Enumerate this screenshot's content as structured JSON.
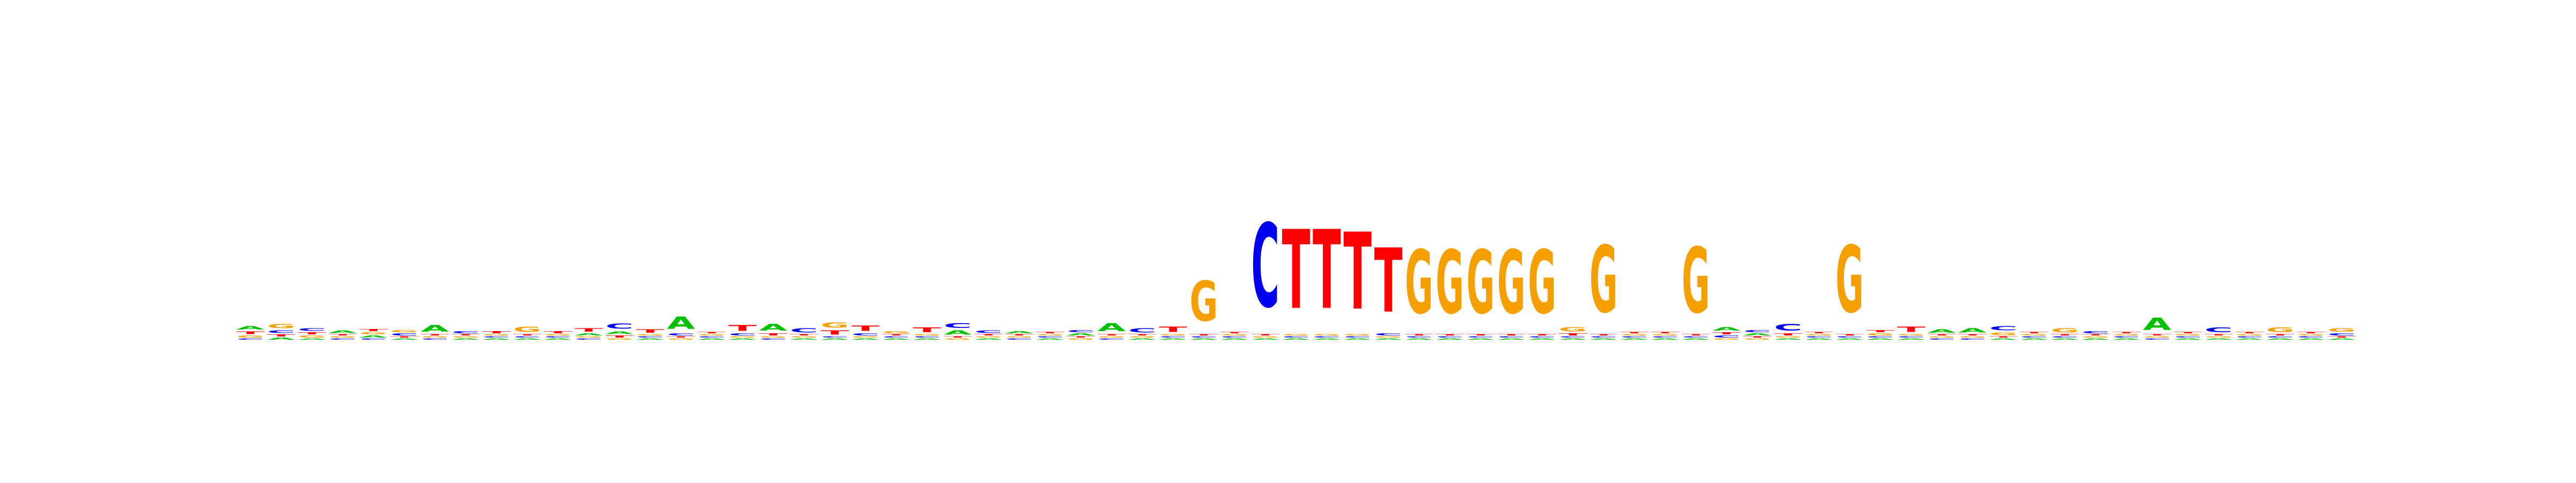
{
  "chart_data": {
    "type": "sequence-logo",
    "alphabet": [
      "A",
      "C",
      "G",
      "T"
    ],
    "colors": {
      "A": "#00c000",
      "C": "#0000ee",
      "G": "#f5a000",
      "T": "#ff0000"
    },
    "background_color": "#ffffff",
    "ylim": [
      0,
      2
    ],
    "value_unit": "bits",
    "positions": [
      {
        "A": 0.05,
        "C": 0.02,
        "G": 0.03,
        "T": 0.04
      },
      {
        "A": 0.03,
        "C": 0.04,
        "G": 0.06,
        "T": 0.03
      },
      {
        "A": 0.02,
        "C": 0.04,
        "G": 0.03,
        "T": 0.03
      },
      {
        "A": 0.04,
        "C": 0.02,
        "G": 0.02,
        "T": 0.02
      },
      {
        "A": 0.03,
        "C": 0.02,
        "G": 0.03,
        "T": 0.03
      },
      {
        "A": 0.02,
        "C": 0.03,
        "G": 0.03,
        "T": 0.02
      },
      {
        "A": 0.1,
        "C": 0.02,
        "G": 0.02,
        "T": 0.02
      },
      {
        "A": 0.02,
        "C": 0.03,
        "G": 0.02,
        "T": 0.02
      },
      {
        "A": 0.02,
        "C": 0.02,
        "G": 0.02,
        "T": 0.03
      },
      {
        "A": 0.02,
        "C": 0.02,
        "G": 0.08,
        "T": 0.02
      },
      {
        "A": 0.02,
        "C": 0.02,
        "G": 0.02,
        "T": 0.03
      },
      {
        "A": 0.03,
        "C": 0.02,
        "G": 0.02,
        "T": 0.05
      },
      {
        "A": 0.04,
        "C": 0.08,
        "G": 0.02,
        "T": 0.03
      },
      {
        "A": 0.02,
        "C": 0.02,
        "G": 0.02,
        "T": 0.05
      },
      {
        "A": 0.18,
        "C": 0.03,
        "G": 0.02,
        "T": 0.02
      },
      {
        "A": 0.02,
        "C": 0.02,
        "G": 0.02,
        "T": 0.02
      },
      {
        "A": 0.02,
        "C": 0.03,
        "G": 0.02,
        "T": 0.09
      },
      {
        "A": 0.1,
        "C": 0.02,
        "G": 0.02,
        "T": 0.03
      },
      {
        "A": 0.02,
        "C": 0.06,
        "G": 0.02,
        "T": 0.02
      },
      {
        "A": 0.02,
        "C": 0.02,
        "G": 0.08,
        "T": 0.06
      },
      {
        "A": 0.02,
        "C": 0.03,
        "G": 0.02,
        "T": 0.08
      },
      {
        "A": 0.02,
        "C": 0.02,
        "G": 0.03,
        "T": 0.02
      },
      {
        "A": 0.02,
        "C": 0.02,
        "G": 0.02,
        "T": 0.07
      },
      {
        "A": 0.06,
        "C": 0.07,
        "G": 0.02,
        "T": 0.02
      },
      {
        "A": 0.02,
        "C": 0.04,
        "G": 0.02,
        "T": 0.02
      },
      {
        "A": 0.03,
        "C": 0.02,
        "G": 0.02,
        "T": 0.02
      },
      {
        "A": 0.02,
        "C": 0.02,
        "G": 0.02,
        "T": 0.02
      },
      {
        "A": 0.03,
        "C": 0.03,
        "G": 0.02,
        "T": 0.02
      },
      {
        "A": 0.12,
        "C": 0.02,
        "G": 0.02,
        "T": 0.02
      },
      {
        "A": 0.02,
        "C": 0.06,
        "G": 0.02,
        "T": 0.02
      },
      {
        "A": 0.02,
        "C": 0.02,
        "G": 0.02,
        "T": 0.08
      },
      {
        "A": 0.02,
        "C": 0.02,
        "G": 0.6,
        "T": 0.02
      },
      {
        "A": 0.02,
        "C": 0.02,
        "G": 0.02,
        "T": 0.02
      },
      {
        "A": 0.02,
        "C": 1.25,
        "G": 0.02,
        "T": 0.02
      },
      {
        "A": 0.02,
        "C": 0.02,
        "G": 0.02,
        "T": 1.18
      },
      {
        "A": 0.02,
        "C": 0.02,
        "G": 0.02,
        "T": 1.18
      },
      {
        "A": 0.02,
        "C": 0.02,
        "G": 0.02,
        "T": 1.15
      },
      {
        "A": 0.02,
        "C": 0.03,
        "G": 0.02,
        "T": 0.96
      },
      {
        "A": 0.02,
        "C": 0.02,
        "G": 0.95,
        "T": 0.02
      },
      {
        "A": 0.02,
        "C": 0.02,
        "G": 0.95,
        "T": 0.02
      },
      {
        "A": 0.02,
        "C": 0.02,
        "G": 0.95,
        "T": 0.02
      },
      {
        "A": 0.02,
        "C": 0.02,
        "G": 0.95,
        "T": 0.02
      },
      {
        "A": 0.02,
        "C": 0.02,
        "G": 0.95,
        "T": 0.02
      },
      {
        "A": 0.02,
        "C": 0.02,
        "G": 0.06,
        "T": 0.03
      },
      {
        "A": 0.02,
        "C": 0.02,
        "G": 1.0,
        "T": 0.02
      },
      {
        "A": 0.02,
        "C": 0.02,
        "G": 0.02,
        "T": 0.02
      },
      {
        "A": 0.02,
        "C": 0.02,
        "G": 0.02,
        "T": 0.02
      },
      {
        "A": 0.02,
        "C": 0.02,
        "G": 0.98,
        "T": 0.02
      },
      {
        "A": 0.05,
        "C": 0.03,
        "G": 0.02,
        "T": 0.03
      },
      {
        "A": 0.03,
        "C": 0.03,
        "G": 0.02,
        "T": 0.02
      },
      {
        "A": 0.02,
        "C": 0.1,
        "G": 0.02,
        "T": 0.03
      },
      {
        "A": 0.02,
        "C": 0.02,
        "G": 0.02,
        "T": 0.02
      },
      {
        "A": 0.02,
        "C": 0.02,
        "G": 1.0,
        "T": 0.02
      },
      {
        "A": 0.02,
        "C": 0.02,
        "G": 0.03,
        "T": 0.03
      },
      {
        "A": 0.02,
        "C": 0.02,
        "G": 0.02,
        "T": 0.08
      },
      {
        "A": 0.05,
        "C": 0.02,
        "G": 0.02,
        "T": 0.02
      },
      {
        "A": 0.06,
        "C": 0.02,
        "G": 0.02,
        "T": 0.02
      },
      {
        "A": 0.02,
        "C": 0.06,
        "G": 0.04,
        "T": 0.02
      },
      {
        "A": 0.02,
        "C": 0.02,
        "G": 0.02,
        "T": 0.02
      },
      {
        "A": 0.02,
        "C": 0.02,
        "G": 0.06,
        "T": 0.02
      },
      {
        "A": 0.02,
        "C": 0.03,
        "G": 0.02,
        "T": 0.02
      },
      {
        "A": 0.02,
        "C": 0.02,
        "G": 0.02,
        "T": 0.02
      },
      {
        "A": 0.18,
        "C": 0.02,
        "G": 0.02,
        "T": 0.02
      },
      {
        "A": 0.02,
        "C": 0.02,
        "G": 0.02,
        "T": 0.02
      },
      {
        "A": 0.02,
        "C": 0.07,
        "G": 0.02,
        "T": 0.02
      },
      {
        "A": 0.02,
        "C": 0.02,
        "G": 0.02,
        "T": 0.02
      },
      {
        "A": 0.02,
        "C": 0.02,
        "G": 0.07,
        "T": 0.02
      },
      {
        "A": 0.02,
        "C": 0.02,
        "G": 0.02,
        "T": 0.02
      },
      {
        "A": 0.02,
        "C": 0.03,
        "G": 0.05,
        "T": 0.02
      }
    ]
  }
}
